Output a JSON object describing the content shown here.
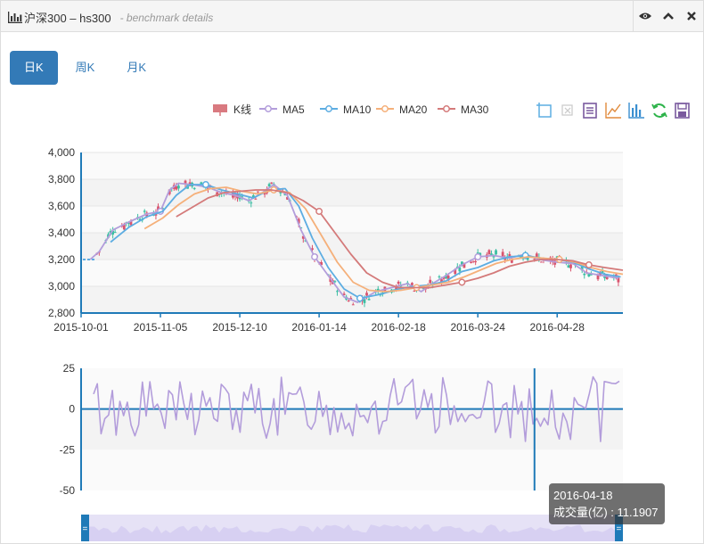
{
  "header": {
    "title": "沪深300 – hs300",
    "subtitle": "- benchmark details"
  },
  "tabs": [
    {
      "label": "日K",
      "active": true
    },
    {
      "label": "周K",
      "active": false
    },
    {
      "label": "月K",
      "active": false
    }
  ],
  "legend": {
    "items": [
      {
        "name": "K线",
        "color": "#d97a80"
      },
      {
        "name": "MA5",
        "color": "#b39ddb"
      },
      {
        "name": "MA10",
        "color": "#5dade2"
      },
      {
        "name": "MA20",
        "color": "#f5b07a"
      },
      {
        "name": "MA30",
        "color": "#d47a7a"
      }
    ]
  },
  "toolbox": [
    "zoom-icon",
    "zoom-reset-icon",
    "data-view-icon",
    "line-chart-icon",
    "bar-chart-icon",
    "refresh-icon",
    "save-icon"
  ],
  "chart_data": [
    {
      "type": "candlestick",
      "ylim": [
        2800,
        4000
      ],
      "y_ticks": [
        "4,000",
        "3,800",
        "3,600",
        "3,400",
        "3,200",
        "3,000",
        "2,800"
      ],
      "x_ticks": [
        "2015-10-01",
        "2015-11-05",
        "2015-12-10",
        "2016-01-14",
        "2016-02-18",
        "2016-03-24",
        "2016-04-28"
      ],
      "x_range": [
        "2015-10-01",
        "2016-05-27"
      ],
      "grid": true,
      "series": [
        {
          "name": "MA5",
          "color": "#b39ddb",
          "points": [
            [
              "2015-10-05",
              3200
            ],
            [
              "2015-10-09",
              3260
            ],
            [
              "2015-10-15",
              3420
            ],
            [
              "2015-10-22",
              3480
            ],
            [
              "2015-10-30",
              3540
            ],
            [
              "2015-11-05",
              3560
            ],
            [
              "2015-11-09",
              3720
            ],
            [
              "2015-11-13",
              3770
            ],
            [
              "2015-11-19",
              3760
            ],
            [
              "2015-11-26",
              3740
            ],
            [
              "2015-12-02",
              3700
            ],
            [
              "2015-12-08",
              3680
            ],
            [
              "2015-12-14",
              3640
            ],
            [
              "2015-12-20",
              3700
            ],
            [
              "2015-12-25",
              3760
            ],
            [
              "2015-12-31",
              3680
            ],
            [
              "2016-01-06",
              3420
            ],
            [
              "2016-01-12",
              3220
            ],
            [
              "2016-01-18",
              3080
            ],
            [
              "2016-01-25",
              2920
            ],
            [
              "2016-01-31",
              2880
            ],
            [
              "2016-02-08",
              2960
            ],
            [
              "2016-02-15",
              2990
            ],
            [
              "2016-02-22",
              3020
            ],
            [
              "2016-02-28",
              2960
            ],
            [
              "2016-03-04",
              3020
            ],
            [
              "2016-03-10",
              3080
            ],
            [
              "2016-03-17",
              3160
            ],
            [
              "2016-03-24",
              3220
            ],
            [
              "2016-03-31",
              3230
            ],
            [
              "2016-04-07",
              3210
            ],
            [
              "2016-04-14",
              3240
            ],
            [
              "2016-04-20",
              3200
            ],
            [
              "2016-04-28",
              3180
            ],
            [
              "2016-05-05",
              3170
            ],
            [
              "2016-05-11",
              3100
            ],
            [
              "2016-05-18",
              3080
            ],
            [
              "2016-05-25",
              3060
            ]
          ]
        },
        {
          "name": "MA10",
          "color": "#5dade2",
          "points": [
            [
              "2015-10-14",
              3330
            ],
            [
              "2015-10-22",
              3440
            ],
            [
              "2015-10-30",
              3520
            ],
            [
              "2015-11-06",
              3560
            ],
            [
              "2015-11-12",
              3680
            ],
            [
              "2015-11-18",
              3760
            ],
            [
              "2015-11-25",
              3760
            ],
            [
              "2015-12-02",
              3720
            ],
            [
              "2015-12-09",
              3690
            ],
            [
              "2015-12-16",
              3660
            ],
            [
              "2015-12-23",
              3720
            ],
            [
              "2015-12-30",
              3730
            ],
            [
              "2016-01-05",
              3600
            ],
            [
              "2016-01-11",
              3360
            ],
            [
              "2016-01-18",
              3140
            ],
            [
              "2016-01-25",
              2980
            ],
            [
              "2016-02-01",
              2910
            ],
            [
              "2016-02-10",
              2940
            ],
            [
              "2016-02-18",
              2980
            ],
            [
              "2016-02-25",
              3000
            ],
            [
              "2016-03-03",
              3010
            ],
            [
              "2016-03-10",
              3040
            ],
            [
              "2016-03-17",
              3110
            ],
            [
              "2016-03-24",
              3140
            ],
            [
              "2016-03-31",
              3190
            ],
            [
              "2016-04-07",
              3220
            ],
            [
              "2016-04-14",
              3230
            ],
            [
              "2016-04-21",
              3210
            ],
            [
              "2016-04-28",
              3200
            ],
            [
              "2016-05-05",
              3180
            ],
            [
              "2016-05-12",
              3130
            ],
            [
              "2016-05-19",
              3090
            ],
            [
              "2016-05-26",
              3070
            ]
          ]
        },
        {
          "name": "MA20",
          "color": "#f5b07a",
          "points": [
            [
              "2015-10-29",
              3430
            ],
            [
              "2015-11-06",
              3510
            ],
            [
              "2015-11-13",
              3610
            ],
            [
              "2015-11-20",
              3690
            ],
            [
              "2015-11-27",
              3730
            ],
            [
              "2015-12-04",
              3740
            ],
            [
              "2015-12-11",
              3710
            ],
            [
              "2015-12-18",
              3690
            ],
            [
              "2015-12-25",
              3720
            ],
            [
              "2016-01-01",
              3700
            ],
            [
              "2016-01-08",
              3580
            ],
            [
              "2016-01-15",
              3380
            ],
            [
              "2016-01-22",
              3180
            ],
            [
              "2016-01-29",
              3030
            ],
            [
              "2016-02-05",
              2970
            ],
            [
              "2016-02-12",
              2960
            ],
            [
              "2016-02-19",
              2970
            ],
            [
              "2016-02-26",
              2990
            ],
            [
              "2016-03-04",
              3010
            ],
            [
              "2016-03-11",
              3030
            ],
            [
              "2016-03-18",
              3070
            ],
            [
              "2016-03-25",
              3120
            ],
            [
              "2016-04-01",
              3170
            ],
            [
              "2016-04-08",
              3200
            ],
            [
              "2016-04-15",
              3220
            ],
            [
              "2016-04-22",
              3210
            ],
            [
              "2016-04-29",
              3200
            ],
            [
              "2016-05-06",
              3180
            ],
            [
              "2016-05-13",
              3140
            ],
            [
              "2016-05-20",
              3110
            ],
            [
              "2016-05-27",
              3090
            ]
          ]
        },
        {
          "name": "MA30",
          "color": "#d47a7a",
          "points": [
            [
              "2015-11-12",
              3520
            ],
            [
              "2015-11-19",
              3590
            ],
            [
              "2015-11-26",
              3660
            ],
            [
              "2015-12-03",
              3700
            ],
            [
              "2015-12-10",
              3710
            ],
            [
              "2015-12-17",
              3720
            ],
            [
              "2015-12-24",
              3720
            ],
            [
              "2015-12-31",
              3700
            ],
            [
              "2016-01-07",
              3640
            ],
            [
              "2016-01-14",
              3560
            ],
            [
              "2016-01-21",
              3400
            ],
            [
              "2016-01-28",
              3240
            ],
            [
              "2016-02-04",
              3100
            ],
            [
              "2016-02-11",
              3030
            ],
            [
              "2016-02-18",
              2990
            ],
            [
              "2016-02-25",
              2990
            ],
            [
              "2016-03-03",
              2990
            ],
            [
              "2016-03-10",
              3010
            ],
            [
              "2016-03-17",
              3030
            ],
            [
              "2016-03-24",
              3060
            ],
            [
              "2016-03-31",
              3100
            ],
            [
              "2016-04-07",
              3150
            ],
            [
              "2016-04-14",
              3180
            ],
            [
              "2016-04-21",
              3200
            ],
            [
              "2016-04-28",
              3200
            ],
            [
              "2016-05-05",
              3190
            ],
            [
              "2016-05-12",
              3160
            ],
            [
              "2016-05-19",
              3140
            ],
            [
              "2016-05-27",
              3120
            ]
          ]
        }
      ],
      "candles_bull_color": "#d9546e",
      "candles_bear_color": "#3bbfa3"
    },
    {
      "type": "line",
      "ylim": [
        -50,
        25
      ],
      "y_ticks": [
        "25",
        "0",
        "-25",
        "-50"
      ],
      "color": "#b39ddb",
      "zero_line": true
    }
  ],
  "tooltip": {
    "date": "2016-04-18",
    "label": "成交量(亿) : 11.1907",
    "value": 11.1907
  },
  "dataZoom": {
    "start": 0,
    "end": 100
  }
}
